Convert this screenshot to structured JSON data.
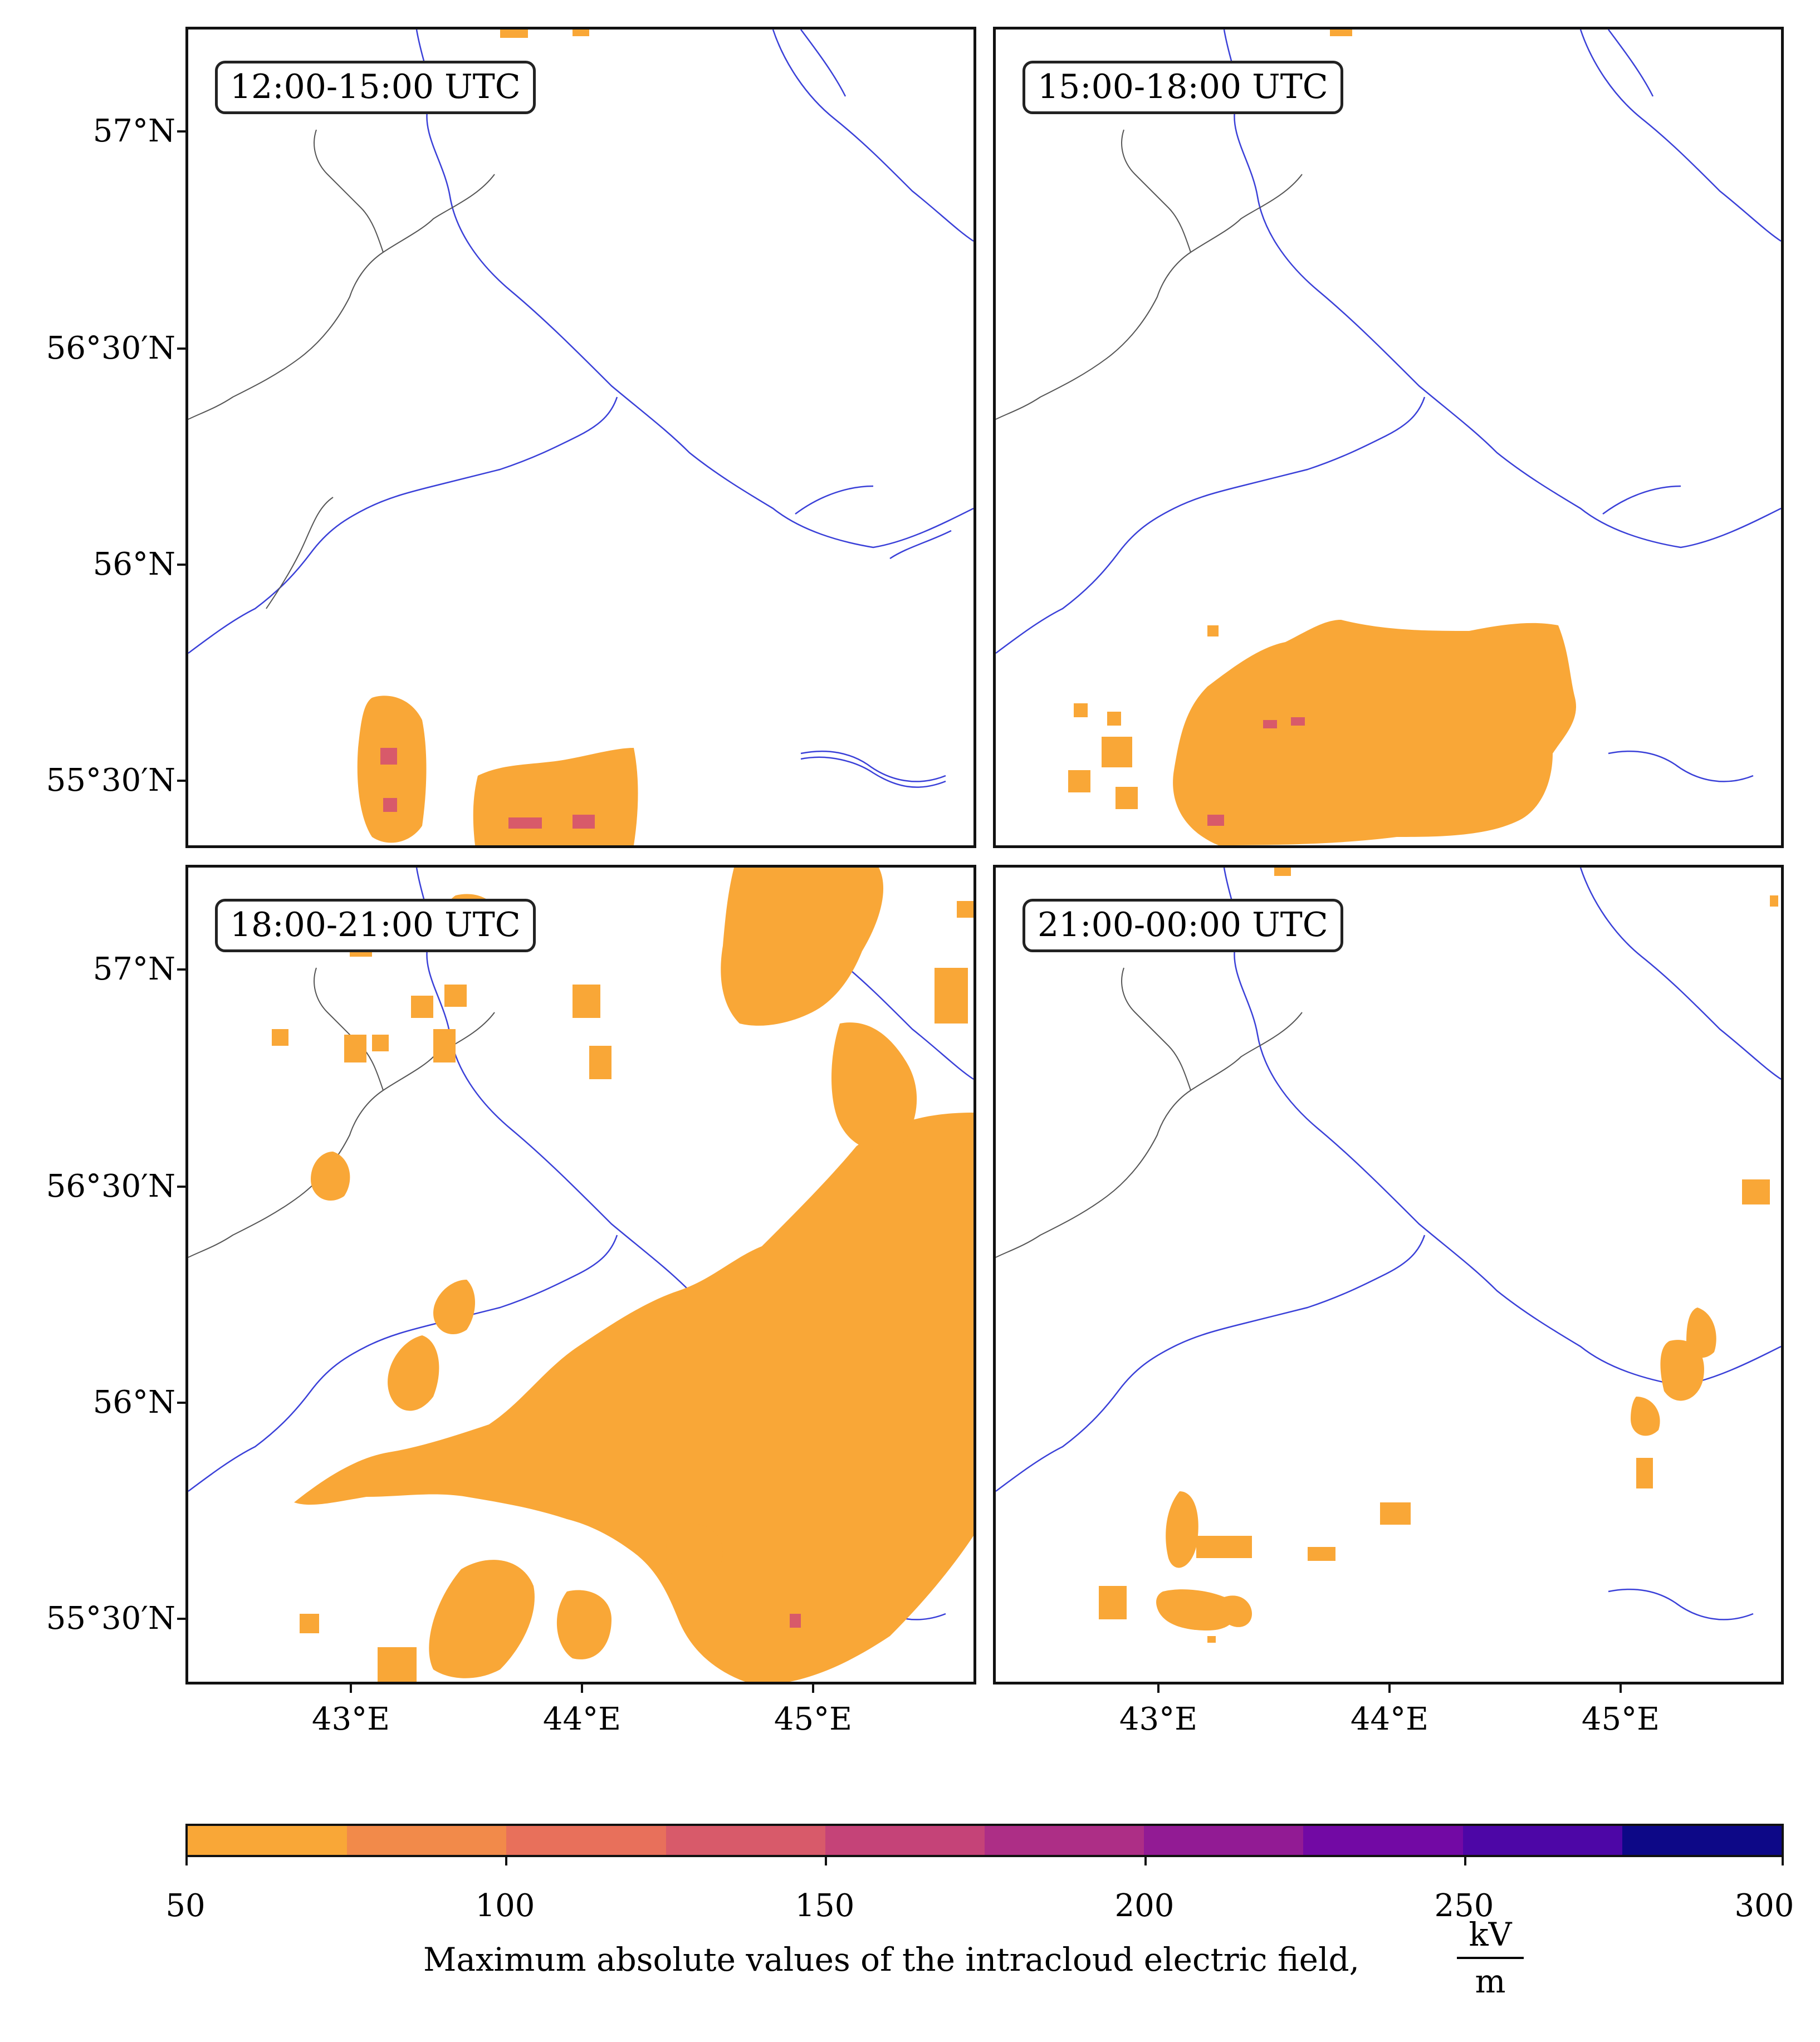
{
  "panels": [
    {
      "label": "12:00-15:00 UTC"
    },
    {
      "label": "15:00-18:00 UTC"
    },
    {
      "label": "18:00-21:00 UTC"
    },
    {
      "label": "21:00-00:00 UTC"
    }
  ],
  "latitude_labels": [
    "57°N",
    "56°30′N",
    "56°N",
    "55°30′N"
  ],
  "longitude_labels": [
    "43°E",
    "44°E",
    "45°E"
  ],
  "colorbar": {
    "ticks": [
      "50",
      "100",
      "150",
      "200",
      "250",
      "300"
    ],
    "title": "Maximum absolute values of the intracloud electric field,",
    "units_numerator": "kV",
    "units_denominator": "m",
    "colors": [
      "#f9a737",
      "#f28a4a",
      "#e8705b",
      "#d85a6a",
      "#c54378",
      "#ad2e86",
      "#921b94",
      "#7209a4",
      "#4d06a6",
      "#0d0887"
    ]
  },
  "colors": {
    "river": "#3a40d8",
    "border": "#555555",
    "field_low": "#f9a737",
    "field_mid": "#d85a6a"
  }
}
